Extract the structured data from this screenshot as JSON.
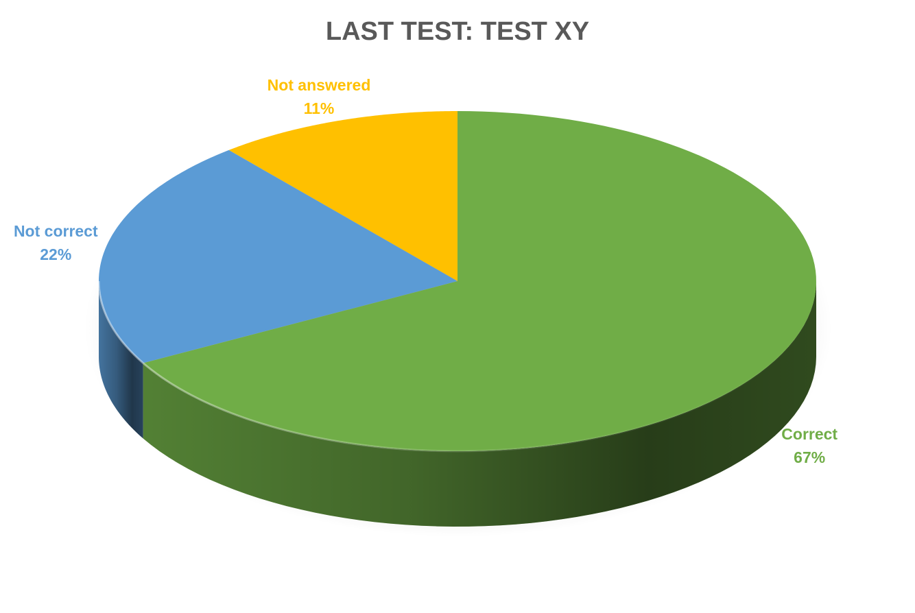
{
  "chart_data": {
    "type": "pie",
    "title": "LAST TEST: TEST XY",
    "categories": [
      "Not answered",
      "Not correct",
      "Correct"
    ],
    "values": [
      11,
      22,
      67
    ],
    "value_labels": [
      "11%",
      "22%",
      "67%"
    ],
    "colors": [
      "#FFC000",
      "#5B9BD5",
      "#70AD47"
    ],
    "style": "3d-pie",
    "start": "top",
    "direction": "counterclockwise",
    "legend": "none"
  }
}
